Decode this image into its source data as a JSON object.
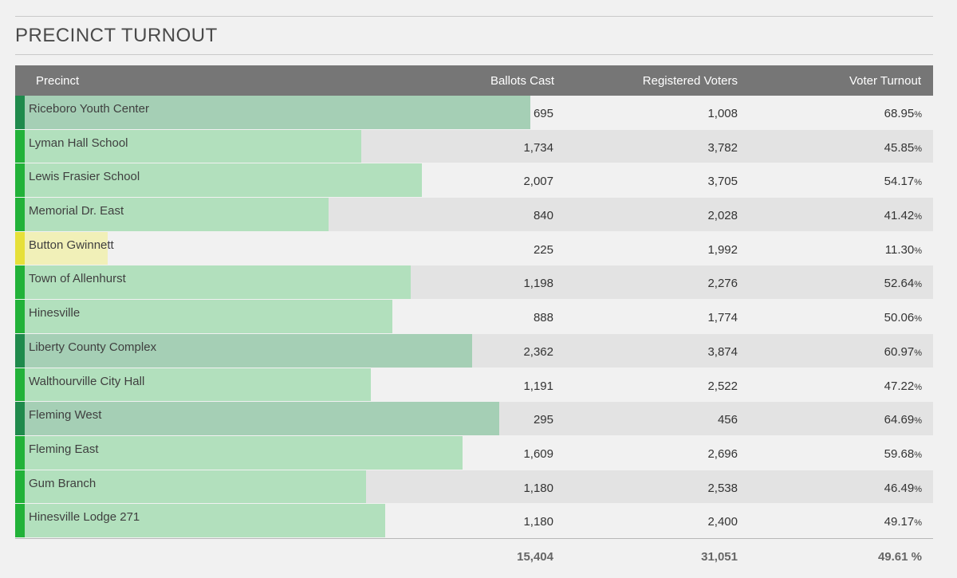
{
  "title": "PRECINCT TURNOUT",
  "columns": {
    "precinct": "Precinct",
    "ballots": "Ballots Cast",
    "registered": "Registered Voters",
    "turnout": "Voter Turnout"
  },
  "colors": {
    "stripe_green": "#22b239",
    "stripe_dark": "#1f8a4c",
    "stripe_yellow": "#e6e03a",
    "bar_light": "#b2e0bd",
    "bar_medium": "#a9d6b4",
    "bar_teal": "#a5cfb5",
    "bar_yellow": "#f1f0b8"
  },
  "rows": [
    {
      "name": "Riceboro Youth Center",
      "ballots": "695",
      "registered": "1,008",
      "turnout": "68.95",
      "turnout_value": 68.95,
      "tone": "dark"
    },
    {
      "name": "Lyman Hall School",
      "ballots": "1,734",
      "registered": "3,782",
      "turnout": "45.85",
      "turnout_value": 45.85,
      "tone": "green"
    },
    {
      "name": "Lewis Frasier School",
      "ballots": "2,007",
      "registered": "3,705",
      "turnout": "54.17",
      "turnout_value": 54.17,
      "tone": "green"
    },
    {
      "name": "Memorial Dr. East",
      "ballots": "840",
      "registered": "2,028",
      "turnout": "41.42",
      "turnout_value": 41.42,
      "tone": "green"
    },
    {
      "name": "Button Gwinnett",
      "ballots": "225",
      "registered": "1,992",
      "turnout": "11.30",
      "turnout_value": 11.3,
      "tone": "yellow"
    },
    {
      "name": "Town of Allenhurst",
      "ballots": "1,198",
      "registered": "2,276",
      "turnout": "52.64",
      "turnout_value": 52.64,
      "tone": "green"
    },
    {
      "name": "Hinesville",
      "ballots": "888",
      "registered": "1,774",
      "turnout": "50.06",
      "turnout_value": 50.06,
      "tone": "green"
    },
    {
      "name": "Liberty County Complex",
      "ballots": "2,362",
      "registered": "3,874",
      "turnout": "60.97",
      "turnout_value": 60.97,
      "tone": "dark"
    },
    {
      "name": "Walthourville City Hall",
      "ballots": "1,191",
      "registered": "2,522",
      "turnout": "47.22",
      "turnout_value": 47.22,
      "tone": "green"
    },
    {
      "name": "Fleming West",
      "ballots": "295",
      "registered": "456",
      "turnout": "64.69",
      "turnout_value": 64.69,
      "tone": "dark"
    },
    {
      "name": "Fleming East",
      "ballots": "1,609",
      "registered": "2,696",
      "turnout": "59.68",
      "turnout_value": 59.68,
      "tone": "green"
    },
    {
      "name": "Gum Branch",
      "ballots": "1,180",
      "registered": "2,538",
      "turnout": "46.49",
      "turnout_value": 46.49,
      "tone": "green"
    },
    {
      "name": "Hinesville Lodge 271",
      "ballots": "1,180",
      "registered": "2,400",
      "turnout": "49.17",
      "turnout_value": 49.17,
      "tone": "green"
    }
  ],
  "percent_sign": "%",
  "totals": {
    "ballots": "15,404",
    "registered": "31,051",
    "turnout": "49.61 %"
  }
}
